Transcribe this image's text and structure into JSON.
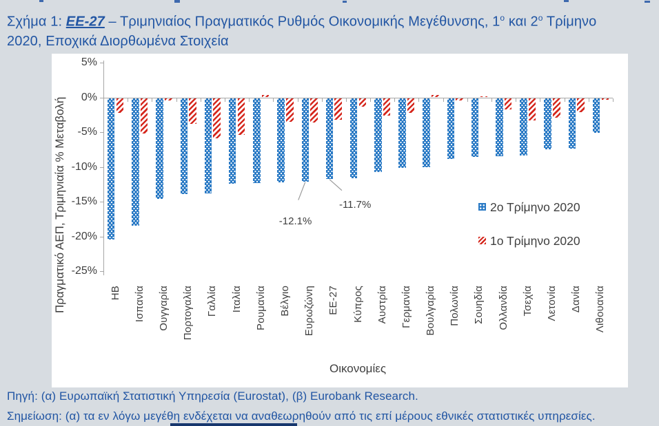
{
  "title": {
    "prefix": "Σχήμα 1: ",
    "highlight": "ΕΕ-27",
    "rest1": " – Τριμηνιαίος Πραγματικός Ρυθμός Οικονομικής Μεγέθυνσης, 1",
    "sup1": "ο",
    "rest2": " και 2",
    "sup2": "ο",
    "rest3": " Τρίμηνο",
    "line2": "2020, Εποχικά Διορθωμένα Στοιχεία"
  },
  "footer": {
    "source": "Πηγή: (α) Ευρωπαϊκή Στατιστική Υπηρεσία (Eurostat), (β) Eurobank Research.",
    "note": "Σημείωση: (α) τα εν λόγω μεγέθη ενδέχεται να αναθεωρηθούν από τις επί μέρους εθνικές στατιστικές υπηρεσίες."
  },
  "colors": {
    "page_bg": "#D7DCE1",
    "title_blue": "#2155A3",
    "bar_blue": "#2A7AC5",
    "bar_red": "#D5271D",
    "axis_gray": "#A6A6A6",
    "text_dark": "#3F3F3F",
    "accent_navy": "#17376E"
  },
  "chart_data": {
    "type": "bar",
    "title": "",
    "xlabel": "Οικονομίες",
    "ylabel": "Πραγματικό ΑΕΠ, Τριμηνιαία % Μεταβολή",
    "ylim": [
      -25,
      5
    ],
    "ytick_step": 5,
    "ytick_labels": [
      "5%",
      "0%",
      "-5%",
      "-10%",
      "-15%",
      "-20%",
      "-25%"
    ],
    "grid": false,
    "legend_position": "inside-right",
    "categories": [
      "ΗΒ",
      "Ισπανία",
      "Ουγγαρία",
      "Πορτογαλία",
      "Γαλλία",
      "Ιταλία",
      "Ρουμανία",
      "Βέλγιο",
      "Ευρωζώνη",
      "ΕΕ-27",
      "Κύπρος",
      "Αυστρία",
      "Γερμανία",
      "Βουλγαρία",
      "Πολωνία",
      "Σουηδία",
      "Ολλανδία",
      "Τσεχία",
      "Λετονία",
      "Δανία",
      "Λιθουανία"
    ],
    "series": [
      {
        "name": "2ο Τρίμηνο 2020",
        "pattern": "dots",
        "color": "#2A7AC5",
        "values": [
          -20.4,
          -18.5,
          -14.6,
          -13.9,
          -13.8,
          -12.4,
          -12.3,
          -12.2,
          -12.1,
          -11.7,
          -11.6,
          -10.7,
          -10.1,
          -10.0,
          -8.9,
          -8.6,
          -8.5,
          -8.4,
          -7.5,
          -7.4,
          -5.1
        ]
      },
      {
        "name": "1ο Τρίμηνο 2020",
        "pattern": "diagonal-stripes",
        "color": "#D5271D",
        "values": [
          -2.2,
          -5.2,
          -0.4,
          -3.8,
          -5.9,
          -5.4,
          0.3,
          -3.5,
          -3.6,
          -3.2,
          -1.3,
          -2.6,
          -2.2,
          0.3,
          -0.4,
          0.1,
          -1.7,
          -3.3,
          -2.9,
          -2.1,
          -0.3
        ]
      }
    ],
    "annotations": [
      {
        "text": "-12.1%",
        "category": "Ευρωζώνη",
        "series": 0
      },
      {
        "text": "-11.7%",
        "category": "ΕΕ-27",
        "series": 0
      }
    ]
  }
}
